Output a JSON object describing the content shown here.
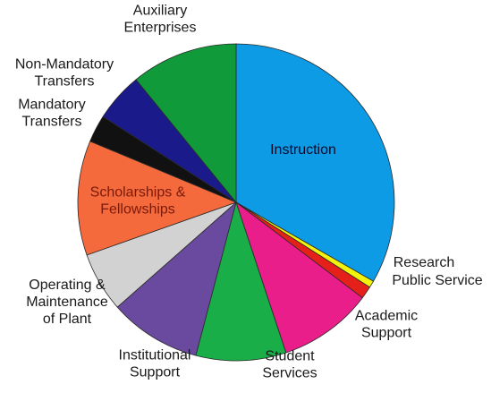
{
  "chart_data": {
    "type": "pie",
    "title": "",
    "start_angle_deg": 0,
    "direction": "clockwise",
    "slices": [
      {
        "label": "Instruction",
        "value": 33.3,
        "color": "#0e9be6",
        "label_position": "inside",
        "label_color": "#0a0a2a"
      },
      {
        "label": "Research",
        "value": 0.7,
        "color": "#f2f20d",
        "label_position": "outside"
      },
      {
        "label": "Public Service",
        "value": 1.3,
        "color": "#e5201a",
        "label_position": "outside"
      },
      {
        "label": "Academic Support",
        "value": 9.6,
        "color": "#ea1e8a",
        "label_position": "outside"
      },
      {
        "label": "Student Services",
        "value": 9.2,
        "color": "#19ae48",
        "label_position": "outside"
      },
      {
        "label": "Institutional Support",
        "value": 9.4,
        "color": "#6a4a9e",
        "label_position": "outside"
      },
      {
        "label": "Operating & Maintenance of Plant",
        "value": 6.1,
        "color": "#d2d2d2",
        "label_position": "outside"
      },
      {
        "label": "Scholarships & Fellowships",
        "value": 11.7,
        "color": "#f56a3c",
        "label_position": "inside",
        "label_color": "#7a1a0a"
      },
      {
        "label": "Mandatory Transfers",
        "value": 2.8,
        "color": "#111111",
        "label_position": "outside"
      },
      {
        "label": "Non-Mandatory Transfers",
        "value": 5.0,
        "color": "#1a1a8a",
        "label_position": "outside"
      },
      {
        "label": "Auxiliary Enterprises",
        "value": 10.9,
        "color": "#109a3a",
        "label_position": "outside"
      }
    ],
    "label_lines": {
      "Instruction": [
        "Instruction"
      ],
      "Research": [
        "Research"
      ],
      "Public Service": [
        "Public Service"
      ],
      "Academic Support": [
        "Academic",
        "Support"
      ],
      "Student Services": [
        "Student",
        "Services"
      ],
      "Institutional Support": [
        "Institutional",
        "Support"
      ],
      "Operating & Maintenance of Plant": [
        "Operating &",
        "Maintenance",
        "of Plant"
      ],
      "Scholarships & Fellowships": [
        "Scholarships &",
        "Fellowships"
      ],
      "Mandatory Transfers": [
        "Mandatory",
        "Transfers"
      ],
      "Non-Mandatory Transfers": [
        "Non-Mandatory",
        "Transfers"
      ],
      "Auxiliary Enterprises": [
        "Auxiliary",
        "Enterprises"
      ]
    },
    "legend": "none"
  }
}
